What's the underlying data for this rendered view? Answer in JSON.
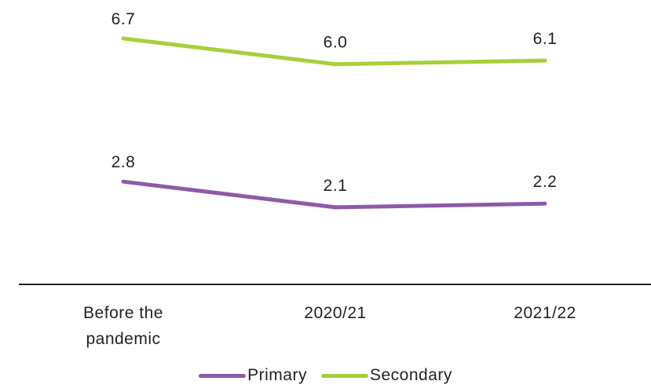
{
  "chart_data": {
    "type": "line",
    "categories": [
      "Before the pandemic",
      "2020/21",
      "2021/22"
    ],
    "category_lines": [
      [
        "Before the",
        "pandemic"
      ],
      [
        "2020/21"
      ],
      [
        "2021/22"
      ]
    ],
    "series": [
      {
        "name": "Primary",
        "values": [
          2.8,
          2.1,
          2.2
        ],
        "labels": [
          "2.8",
          "2.1",
          "2.2"
        ],
        "color": "#8e5aa8"
      },
      {
        "name": "Secondary",
        "values": [
          6.7,
          6.0,
          6.1
        ],
        "labels": [
          "6.7",
          "6.0",
          "6.1"
        ],
        "color": "#a8cf3a"
      }
    ],
    "ylim": [
      0,
      7.75
    ],
    "grid": false,
    "legend_position": "bottom",
    "axis_color": "#222222"
  }
}
